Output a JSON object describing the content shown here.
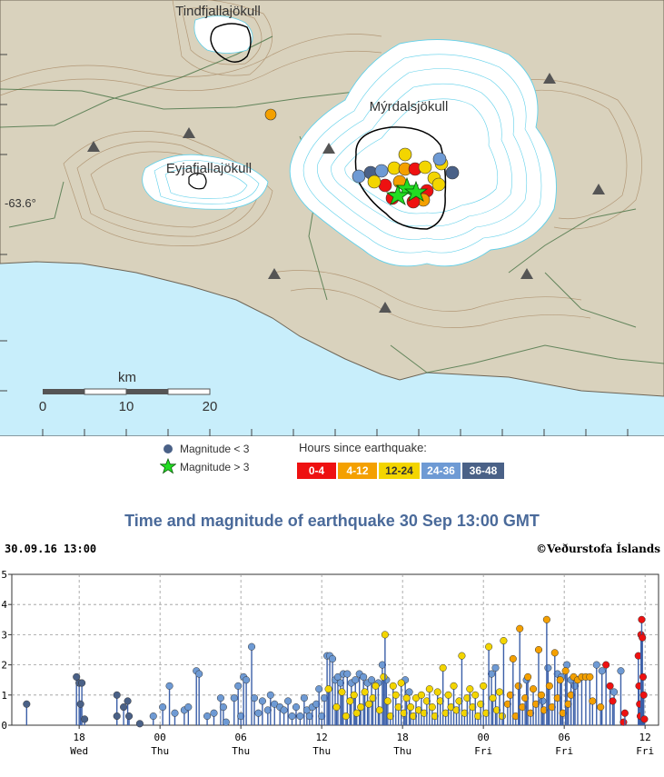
{
  "map": {
    "labels": [
      "Tindfjallajökull",
      "Mýrdalsjökull",
      "Eyjafjallajökull"
    ],
    "lat_label": "-63.6°",
    "scale_title": "km",
    "scale_ticks": [
      "0",
      "10",
      "20"
    ],
    "colors": {
      "sea": "#c8eefb",
      "land": "#d9d2bd",
      "ice": "#ffffff",
      "contour_land": "#9a7b5a",
      "contour_ice": "#5fd0ea",
      "road": "#3b6b3b",
      "station": "#555555"
    }
  },
  "legend": {
    "mag_small": "Magnitude < 3",
    "mag_large": "Magnitude > 3",
    "hours_title": "Hours since earthquake:",
    "hours": [
      {
        "label": "0-4",
        "color": "#ee1111"
      },
      {
        "label": "4-12",
        "color": "#f4a000"
      },
      {
        "label": "12-24",
        "color": "#f3d500"
      },
      {
        "label": "24-36",
        "color": "#6e9ad4"
      },
      {
        "label": "36-48",
        "color": "#4a6187"
      }
    ]
  },
  "chart_title": "Time and magnitude of earthquake   30 Sep 13:00 GMT",
  "timestamp": "30.09.16 13:00",
  "copyright": "©Veðurstofa Íslands",
  "chart_data": {
    "type": "scatter",
    "ylim": [
      0,
      5
    ],
    "yticks": [
      "0",
      "1",
      "2",
      "3",
      "4",
      "5"
    ],
    "xlim_hours_ago": [
      48,
      0
    ],
    "xticks": [
      {
        "hours_ago": 43,
        "top": "18",
        "bottom": "Wed"
      },
      {
        "hours_ago": 37,
        "top": "00",
        "bottom": "Thu"
      },
      {
        "hours_ago": 31,
        "top": "06",
        "bottom": "Thu"
      },
      {
        "hours_ago": 25,
        "top": "12",
        "bottom": "Thu"
      },
      {
        "hours_ago": 19,
        "top": "18",
        "bottom": "Thu"
      },
      {
        "hours_ago": 13,
        "top": "00",
        "bottom": "Fri"
      },
      {
        "hours_ago": 7,
        "top": "06",
        "bottom": "Fri"
      },
      {
        "hours_ago": 1,
        "top": "12",
        "bottom": "Fri"
      }
    ],
    "series": [
      {
        "color": "#4a6187",
        "points": [
          [
            46.9,
            0.7
          ],
          [
            43.2,
            1.6
          ],
          [
            43,
            1.4
          ],
          [
            42.8,
            1.4
          ],
          [
            42.9,
            0.7
          ],
          [
            42.6,
            0.2
          ],
          [
            40.2,
            1.0
          ],
          [
            40.2,
            0.3
          ],
          [
            39.7,
            0.6
          ],
          [
            39.4,
            0.8
          ],
          [
            39.3,
            0.3
          ],
          [
            38.5,
            0.05
          ]
        ]
      },
      {
        "color": "#6e9ad4",
        "points": [
          [
            37.5,
            0.3
          ],
          [
            36.8,
            0.6
          ],
          [
            36.3,
            1.3
          ],
          [
            35.9,
            0.4
          ],
          [
            35.2,
            0.5
          ],
          [
            34.9,
            0.6
          ],
          [
            34.3,
            1.8
          ],
          [
            34.1,
            1.7
          ],
          [
            33.5,
            0.3
          ],
          [
            33,
            0.4
          ],
          [
            32.5,
            0.9
          ],
          [
            32.3,
            0.6
          ],
          [
            32.1,
            0.1
          ],
          [
            31.5,
            0.9
          ],
          [
            31.2,
            1.3
          ],
          [
            31,
            0.3
          ],
          [
            30.8,
            1.6
          ],
          [
            30.6,
            1.5
          ],
          [
            30.2,
            2.6
          ],
          [
            30,
            0.9
          ],
          [
            29.7,
            0.4
          ],
          [
            29.4,
            0.8
          ],
          [
            29,
            0.5
          ],
          [
            28.8,
            1.0
          ],
          [
            28.5,
            0.7
          ],
          [
            28.1,
            0.6
          ],
          [
            27.8,
            0.5
          ],
          [
            27.5,
            0.8
          ],
          [
            27.2,
            0.3
          ],
          [
            26.9,
            0.6
          ],
          [
            26.6,
            0.3
          ],
          [
            26.3,
            0.9
          ],
          [
            26.1,
            0.5
          ],
          [
            25.9,
            0.3
          ],
          [
            25.7,
            0.6
          ],
          [
            25.4,
            0.7
          ],
          [
            25.2,
            1.2
          ],
          [
            25,
            0.3
          ],
          [
            24.8,
            0.9
          ],
          [
            24.6,
            2.3
          ],
          [
            24.4,
            2.3
          ],
          [
            24.2,
            2.2
          ],
          [
            24,
            1.5
          ],
          [
            23.8,
            1.6
          ],
          [
            23.6,
            1.4
          ],
          [
            23.4,
            1.7
          ],
          [
            23.1,
            1.7
          ],
          [
            22.8,
            1.4
          ],
          [
            22.5,
            1.5
          ],
          [
            22.2,
            1.7
          ],
          [
            21.9,
            1.6
          ],
          [
            21.6,
            1.4
          ],
          [
            21.3,
            1.5
          ],
          [
            20.8,
            1.4
          ],
          [
            20.5,
            2.0
          ],
          [
            20.2,
            1.5
          ],
          [
            18.8,
            1.5
          ],
          [
            18.5,
            1.1
          ],
          [
            12.4,
            1.7
          ],
          [
            12.1,
            1.9
          ],
          [
            9.8,
            1.5
          ],
          [
            8.6,
            0.8
          ],
          [
            8.2,
            1.9
          ],
          [
            7.5,
            1.7
          ],
          [
            7.2,
            1.6
          ],
          [
            6.8,
            2.0
          ],
          [
            6.5,
            1.5
          ],
          [
            6.2,
            1.3
          ],
          [
            4.6,
            2.0
          ],
          [
            4.2,
            1.8
          ],
          [
            3.3,
            1.1
          ],
          [
            2.8,
            1.8
          ]
        ]
      },
      {
        "color": "#f3d500",
        "points": [
          [
            24.5,
            1.2
          ],
          [
            23.9,
            0.6
          ],
          [
            23.5,
            1.1
          ],
          [
            23.2,
            0.3
          ],
          [
            22.9,
            0.8
          ],
          [
            22.6,
            1.0
          ],
          [
            22.4,
            0.4
          ],
          [
            22.1,
            0.6
          ],
          [
            21.8,
            1.1
          ],
          [
            21.5,
            0.7
          ],
          [
            21.2,
            0.9
          ],
          [
            21.0,
            1.3
          ],
          [
            20.7,
            0.5
          ],
          [
            20.4,
            1.6
          ],
          [
            20.3,
            3.0
          ],
          [
            20.1,
            0.8
          ],
          [
            19.9,
            0.3
          ],
          [
            19.7,
            1.3
          ],
          [
            19.5,
            1.0
          ],
          [
            19.3,
            0.6
          ],
          [
            19.1,
            1.4
          ],
          [
            18.9,
            0.4
          ],
          [
            18.7,
            0.9
          ],
          [
            18.4,
            0.6
          ],
          [
            18.2,
            0.3
          ],
          [
            18.0,
            0.9
          ],
          [
            17.8,
            0.5
          ],
          [
            17.6,
            1.0
          ],
          [
            17.4,
            0.4
          ],
          [
            17.2,
            0.8
          ],
          [
            17.0,
            1.2
          ],
          [
            16.8,
            0.6
          ],
          [
            16.6,
            0.3
          ],
          [
            16.4,
            1.1
          ],
          [
            16.2,
            0.8
          ],
          [
            16.0,
            1.9
          ],
          [
            15.8,
            0.4
          ],
          [
            15.6,
            1.0
          ],
          [
            15.4,
            0.6
          ],
          [
            15.2,
            1.3
          ],
          [
            15.0,
            0.5
          ],
          [
            14.8,
            0.8
          ],
          [
            14.6,
            2.3
          ],
          [
            14.4,
            0.4
          ],
          [
            14.2,
            0.9
          ],
          [
            14.0,
            1.2
          ],
          [
            13.8,
            0.6
          ],
          [
            13.6,
            1.0
          ],
          [
            13.4,
            0.3
          ],
          [
            13.2,
            0.7
          ],
          [
            13.0,
            1.3
          ],
          [
            12.8,
            0.4
          ],
          [
            12.6,
            2.6
          ],
          [
            12.3,
            0.9
          ],
          [
            12.0,
            0.5
          ],
          [
            11.8,
            1.1
          ],
          [
            11.6,
            0.3
          ],
          [
            11.5,
            2.8
          ]
        ]
      },
      {
        "color": "#f4a000",
        "points": [
          [
            11.2,
            0.7
          ],
          [
            11.0,
            1.0
          ],
          [
            10.8,
            2.2
          ],
          [
            10.6,
            0.3
          ],
          [
            10.4,
            1.3
          ],
          [
            10.3,
            3.2
          ],
          [
            10.1,
            0.6
          ],
          [
            9.9,
            0.9
          ],
          [
            9.7,
            1.6
          ],
          [
            9.5,
            0.4
          ],
          [
            9.3,
            1.2
          ],
          [
            9.1,
            0.7
          ],
          [
            8.9,
            2.5
          ],
          [
            8.7,
            1.0
          ],
          [
            8.5,
            0.5
          ],
          [
            8.3,
            3.5
          ],
          [
            8.1,
            1.3
          ],
          [
            7.9,
            0.6
          ],
          [
            7.7,
            2.4
          ],
          [
            7.5,
            0.9
          ],
          [
            7.3,
            1.5
          ],
          [
            7.1,
            0.4
          ],
          [
            6.9,
            1.8
          ],
          [
            6.7,
            0.7
          ],
          [
            6.5,
            1.0
          ],
          [
            6.3,
            1.6
          ],
          [
            6.0,
            1.5
          ],
          [
            5.7,
            1.6
          ],
          [
            5.4,
            1.6
          ],
          [
            5.1,
            1.6
          ],
          [
            4.9,
            0.8
          ],
          [
            4.3,
            0.6
          ]
        ]
      },
      {
        "color": "#ee1111",
        "points": [
          [
            3.9,
            2.0
          ],
          [
            3.6,
            1.3
          ],
          [
            3.4,
            0.8
          ],
          [
            2.6,
            0.1
          ],
          [
            2.5,
            0.4
          ],
          [
            1.5,
            2.3
          ],
          [
            1.45,
            1.3
          ],
          [
            1.4,
            0.7
          ],
          [
            1.35,
            0.3
          ],
          [
            1.3,
            3.0
          ],
          [
            1.25,
            3.5
          ],
          [
            1.2,
            2.9
          ],
          [
            1.15,
            1.6
          ],
          [
            1.1,
            1.0
          ],
          [
            1.05,
            0.2
          ]
        ]
      }
    ],
    "stars": []
  }
}
